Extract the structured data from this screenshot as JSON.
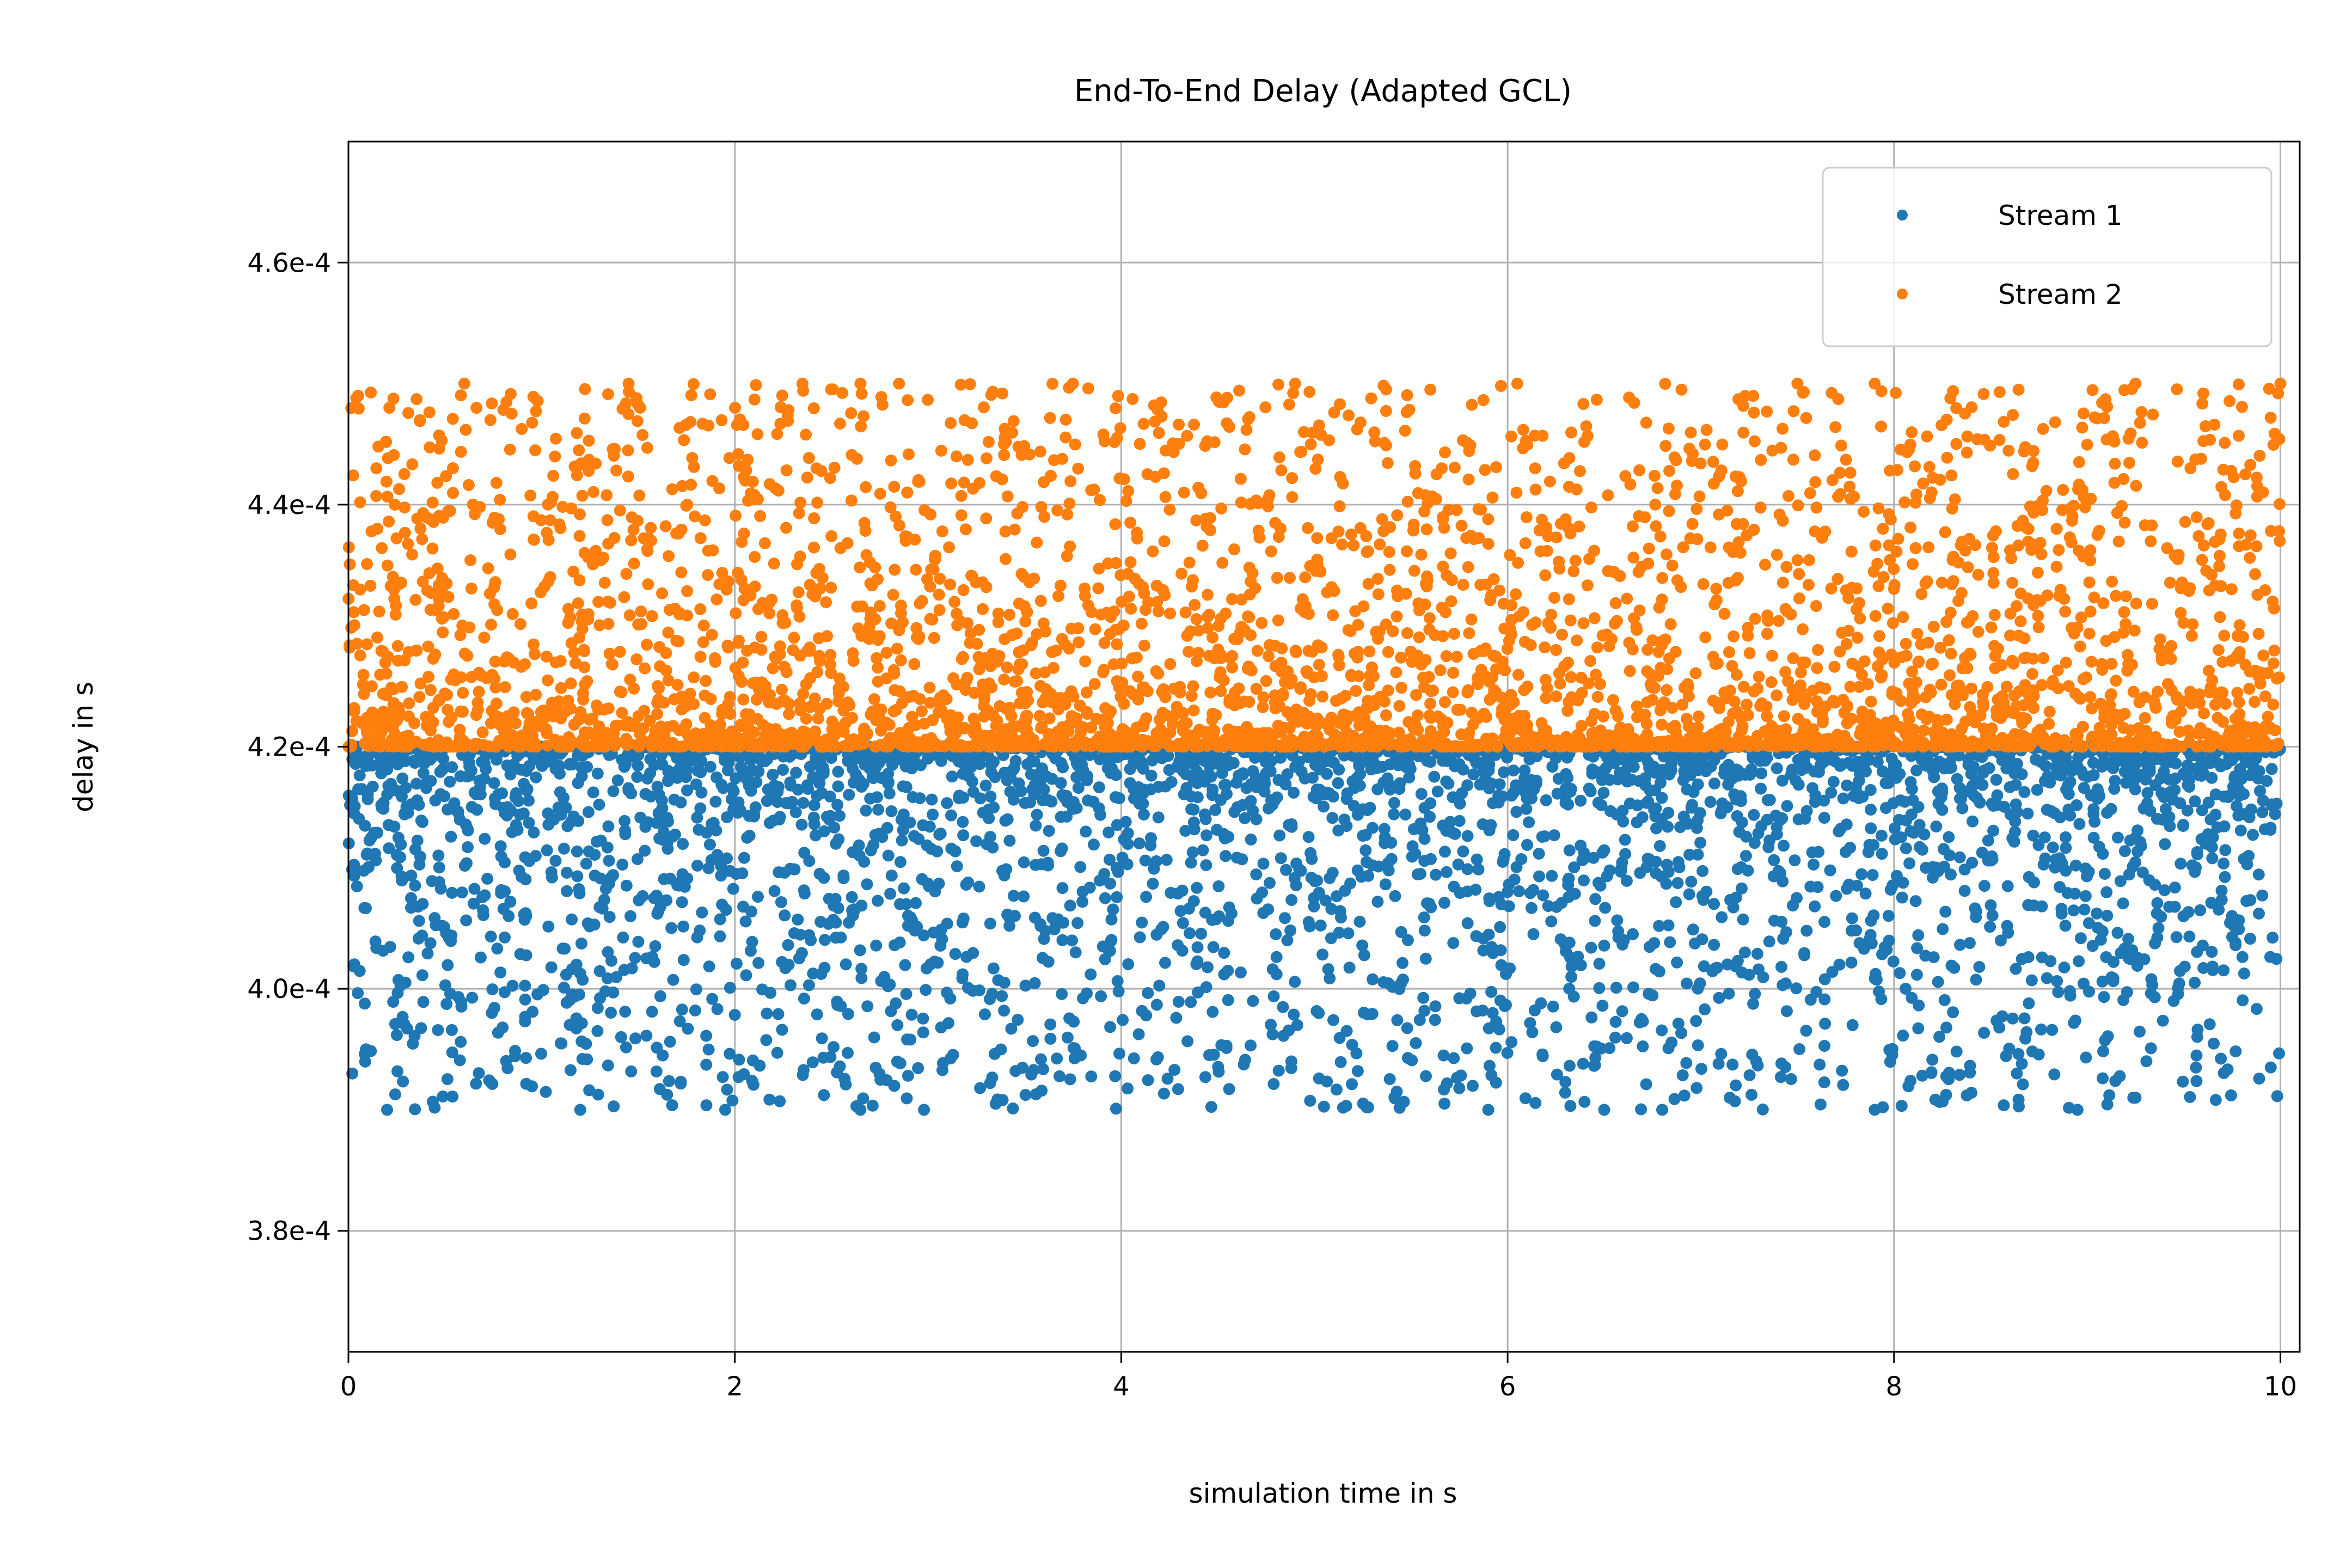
{
  "chart_data": {
    "type": "scatter",
    "title": "End-To-End Delay (Adapted GCL)",
    "xlabel": "simulation time in s",
    "ylabel": "delay in s",
    "xlim": [
      0,
      10.1
    ],
    "ylim": [
      0.00037,
      0.00047
    ],
    "x_ticks": [
      0,
      2,
      4,
      6,
      8,
      10
    ],
    "x_tick_labels": [
      "0",
      "2",
      "4",
      "6",
      "8",
      "10"
    ],
    "y_ticks": [
      0.00038,
      0.0004,
      0.00042,
      0.00044,
      0.00046
    ],
    "y_tick_labels": [
      "3.8e-4",
      "4.0e-4",
      "4.2e-4",
      "4.4e-4",
      "4.6e-4"
    ],
    "grid": true,
    "legend_position": "top-right",
    "series": [
      {
        "name": "Stream 1",
        "color": "#1f77b4",
        "x_range": [
          0,
          10
        ],
        "y_range": [
          0.00039,
          0.00042
        ],
        "distribution": "dense near 4.2e-4, sparse toward 3.9e-4",
        "sample_points": [
          [
            0.02,
            0.000393
          ],
          [
            0.2,
            0.00039
          ],
          [
            1.2,
            0.00039
          ],
          [
            1.95,
            0.00039
          ],
          [
            2.65,
            0.00039
          ],
          [
            3.35,
            0.0003905
          ],
          [
            5.9,
            0.00039
          ],
          [
            6.5,
            0.00039
          ],
          [
            6.8,
            0.00039
          ],
          [
            7.15,
            0.000391
          ],
          [
            7.9,
            0.00039
          ],
          [
            8.95,
            0.00039
          ],
          [
            9.25,
            0.000391
          ],
          [
            9.95,
            0.0003935
          ]
        ]
      },
      {
        "name": "Stream 2",
        "color": "#ff7f0e",
        "x_range": [
          0,
          10
        ],
        "y_range": [
          0.00042,
          0.00045
        ],
        "distribution": "dense near 4.2e-4, sparse toward 4.5e-4",
        "sample_points": [
          [
            0.05,
            0.000449
          ],
          [
            0.6,
            0.00045
          ],
          [
            1.45,
            0.00045
          ],
          [
            2.35,
            0.00045
          ],
          [
            2.65,
            0.00045
          ],
          [
            2.85,
            0.00045
          ],
          [
            3.75,
            0.00045
          ],
          [
            4.9,
            0.00045
          ],
          [
            5.6,
            0.0004495
          ],
          [
            6.05,
            0.00045
          ],
          [
            6.9,
            0.0004495
          ],
          [
            7.5,
            0.00045
          ],
          [
            7.9,
            0.00045
          ],
          [
            9.25,
            0.00045
          ],
          [
            10.0,
            0.00045
          ]
        ]
      }
    ]
  }
}
